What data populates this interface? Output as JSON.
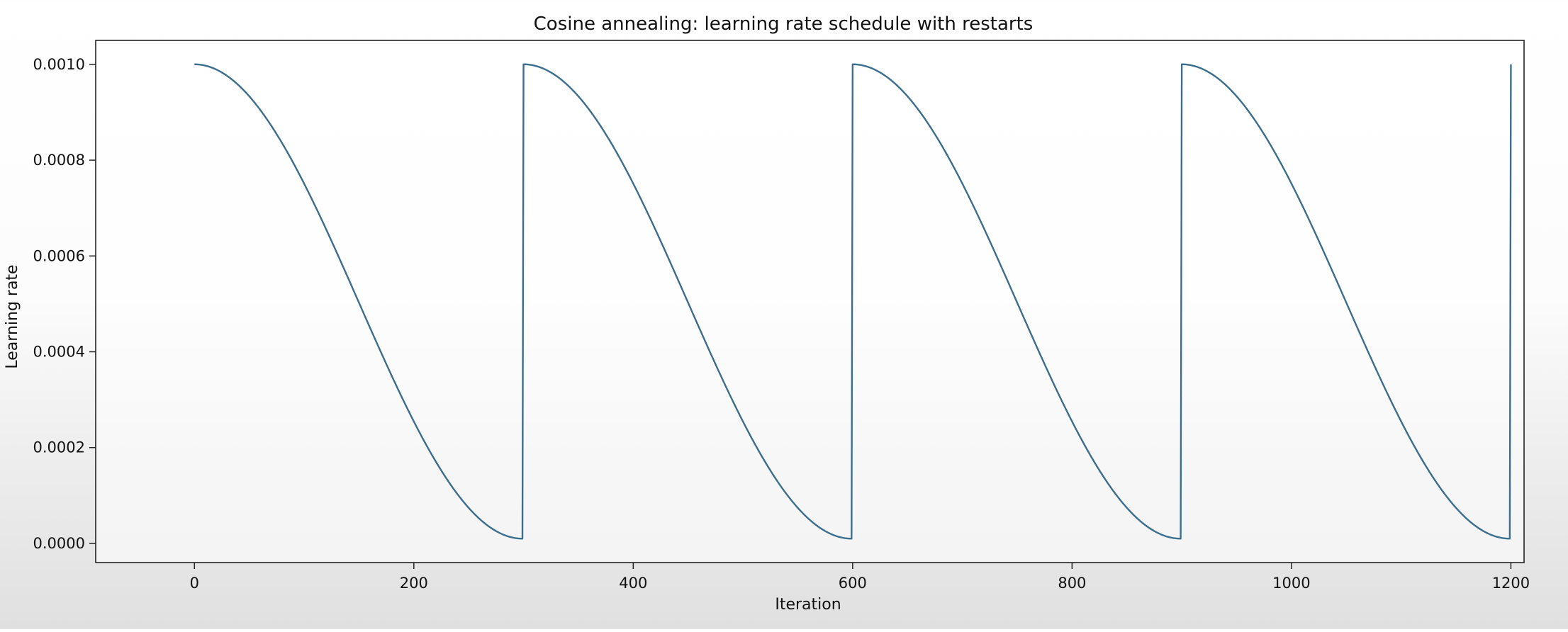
{
  "chart_data": {
    "type": "line",
    "title": "Cosine annealing: learning rate schedule with restarts",
    "xlabel": "Iteration",
    "ylabel": "Learning rate",
    "xlim": [
      -90,
      1212
    ],
    "ylim": [
      -4e-05,
      0.00105
    ],
    "x_ticks": [
      0,
      200,
      400,
      600,
      800,
      1000,
      1200
    ],
    "x_tick_labels": [
      "0",
      "200",
      "400",
      "600",
      "800",
      "1000",
      "1200"
    ],
    "y_ticks": [
      0.0,
      0.0002,
      0.0004,
      0.0006,
      0.0008,
      0.001
    ],
    "y_tick_labels": [
      "0.0000",
      "0.0002",
      "0.0004",
      "0.0006",
      "0.0008",
      "0.0010"
    ],
    "grid": false,
    "legend": "none",
    "series": [
      {
        "color": "#3b6e8c",
        "lr_max": 0.001,
        "lr_min": 1e-05,
        "cycle_length": 300,
        "x_range": [
          0,
          1200
        ],
        "x": [
          0,
          30,
          60,
          90,
          120,
          150,
          180,
          210,
          240,
          270,
          299,
          300,
          330,
          360,
          390,
          420,
          450,
          480,
          510,
          540,
          570,
          599,
          600,
          630,
          660,
          690,
          720,
          750,
          780,
          810,
          840,
          870,
          899,
          900,
          930,
          960,
          990,
          1020,
          1050,
          1080,
          1110,
          1140,
          1170,
          1199
        ],
        "y": [
          0.001,
          0.000976,
          0.000906,
          0.000797,
          0.000658,
          0.000505,
          0.000352,
          0.000214,
          0.000104,
          3.4e-05,
          1e-05,
          0.001,
          0.000976,
          0.000906,
          0.000797,
          0.000658,
          0.000505,
          0.000352,
          0.000214,
          0.000104,
          3.4e-05,
          1e-05,
          0.001,
          0.000976,
          0.000906,
          0.000797,
          0.000658,
          0.000505,
          0.000352,
          0.000214,
          0.000104,
          3.4e-05,
          1e-05,
          0.001,
          0.000976,
          0.000906,
          0.000797,
          0.000658,
          0.000505,
          0.000352,
          0.000214,
          0.000104,
          3.4e-05,
          1e-05
        ]
      }
    ]
  }
}
